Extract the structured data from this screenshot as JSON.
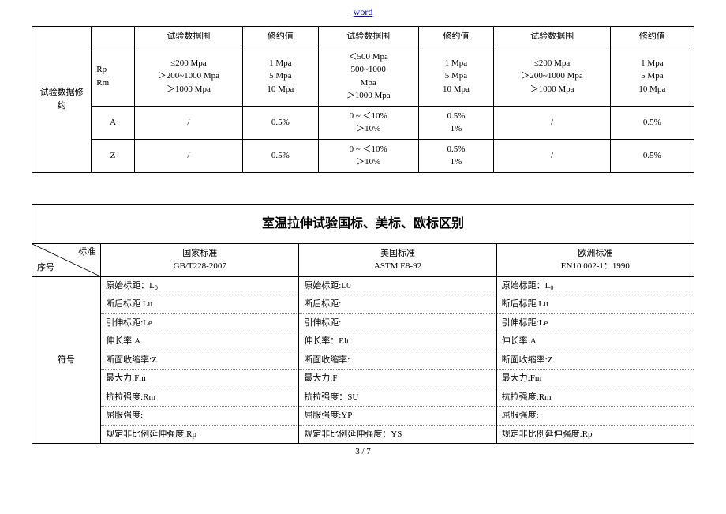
{
  "header_link": "word",
  "footer": "3 / 7",
  "table1": {
    "row_header": "试验数据修约",
    "col_headers": [
      "试验数据围",
      "修约值",
      "试验数据围",
      "修约值",
      "试验数据围",
      "修约值"
    ],
    "rows": [
      {
        "label": "Rp\nRm",
        "c1": "≤200 Mpa\n＞200~1000 Mpa\n＞1000 Mpa",
        "c2": "1 Mpa\n5 Mpa\n10 Mpa",
        "c3": "＜500 Mpa\n500~1000\nMpa\n＞1000 Mpa",
        "c4": "1 Mpa\n5 Mpa\n10 Mpa",
        "c5": "≤200 Mpa\n＞200~1000 Mpa\n＞1000 Mpa",
        "c6": "1 Mpa\n5 Mpa\n10 Mpa"
      },
      {
        "label": "A",
        "c1": "/",
        "c2": "0.5%",
        "c3": "0 ~ ＜10%\n＞10%",
        "c4": "0.5%\n1%",
        "c5": "/",
        "c6": "0.5%"
      },
      {
        "label": "Z",
        "c1": "/",
        "c2": "0.5%",
        "c3": "0 ~ ＜10%\n＞10%",
        "c4": "0.5%\n1%",
        "c5": "/",
        "c6": "0.5%"
      }
    ]
  },
  "table2": {
    "title": "室温拉伸试验国标、美标、欧标区别",
    "diag_top": "标准",
    "diag_bottom": "序号",
    "standards": [
      {
        "name": "国家标准",
        "code": "GB/T228-2007"
      },
      {
        "name": "美国标准",
        "code": "ASTM E8-92"
      },
      {
        "name": "欧洲标准",
        "code": "EN10 002-1：1990"
      }
    ],
    "row_label": "符号",
    "symbols": {
      "col1": [
        "原始标距：L₀",
        "断后标距 Lu",
        "引伸标距:Le",
        "伸长率:A",
        "断面收缩率:Z",
        "最大力:Fm",
        "抗拉强度:Rm",
        "屈服强度:",
        "规定非比例延伸强度:Rp"
      ],
      "col2": [
        "原始标距:L0",
        "断后标距:",
        "引伸标距:",
        "伸长率：Elt",
        "断面收缩率:",
        "最大力:F",
        "抗拉强度：SU",
        "屈服强度:YP",
        "规定非比例延伸强度：YS"
      ],
      "col3": [
        "原始标距：L₀",
        "断后标距 Lu",
        "引伸标距:Le",
        "伸长率:A",
        "断面收缩率:Z",
        "最大力:Fm",
        "抗拉强度:Rm",
        "屈服强度:",
        "规定非比例延伸强度:Rp"
      ]
    }
  }
}
